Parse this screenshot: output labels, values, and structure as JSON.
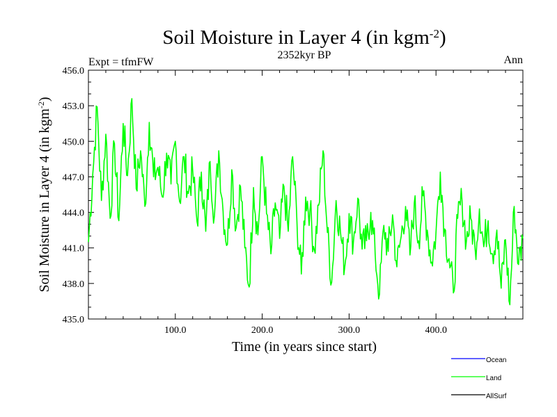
{
  "chart_data": {
    "type": "line",
    "title_main": "Soil Moisture in Layer 4 (in kgm",
    "title_sup": "-2",
    "title_end": ")",
    "subtitle_left": "Expt = tfmFW",
    "subtitle_center": "2352kyr BP",
    "subtitle_right": "Ann",
    "xlabel": "Time (in years since start)",
    "ylabel_main": "Soil Moisture in Layer 4 (in kgm",
    "ylabel_sup": "-2",
    "ylabel_end": ")",
    "xlim": [
      0,
      500
    ],
    "ylim": [
      435,
      456
    ],
    "x_ticks": [
      100,
      200,
      300,
      400
    ],
    "x_tick_labels": [
      "100.0",
      "200.0",
      "300.0",
      "400.0"
    ],
    "y_ticks": [
      435,
      438,
      441,
      444,
      447,
      450,
      453,
      456
    ],
    "y_tick_labels": [
      "435.0",
      "438.0",
      "441.0",
      "444.0",
      "447.0",
      "450.0",
      "453.0",
      "456.0"
    ],
    "legend": [
      {
        "name": "Ocean",
        "color": "#0000ff"
      },
      {
        "name": "Land",
        "color": "#00ff00"
      },
      {
        "name": "AllSurf",
        "color": "#000000"
      }
    ],
    "series": [
      {
        "name": "Land",
        "color": "#00ff00",
        "x": [
          0,
          5,
          10,
          15,
          20,
          25,
          30,
          35,
          40,
          45,
          50,
          55,
          60,
          65,
          70,
          75,
          80,
          85,
          90,
          95,
          100,
          105,
          110,
          115,
          120,
          125,
          130,
          135,
          140,
          145,
          150,
          155,
          160,
          165,
          170,
          175,
          180,
          185,
          190,
          195,
          200,
          205,
          210,
          215,
          220,
          225,
          230,
          235,
          240,
          245,
          250,
          255,
          260,
          265,
          270,
          275,
          280,
          285,
          290,
          295,
          300,
          305,
          310,
          315,
          320,
          325,
          330,
          335,
          340,
          345,
          350,
          355,
          360,
          365,
          370,
          375,
          380,
          385,
          390,
          395,
          400,
          405,
          410,
          415,
          420,
          425,
          430,
          435,
          440,
          445,
          450,
          455,
          460,
          465,
          470,
          475,
          480,
          485,
          490,
          495,
          500
        ],
        "values": [
          441.5,
          447.2,
          452.9,
          445.0,
          450.6,
          443.5,
          449.8,
          443.3,
          451.5,
          447.1,
          453.6,
          446.0,
          449.2,
          444.5,
          451.6,
          447.0,
          447.8,
          445.3,
          449.0,
          446.4,
          450.0,
          444.9,
          448.7,
          445.6,
          447.5,
          443.2,
          447.4,
          442.4,
          448.3,
          443.7,
          449.2,
          444.1,
          441.3,
          447.6,
          442.7,
          446.2,
          441.0,
          437.7,
          446.1,
          442.1,
          448.7,
          443.9,
          440.5,
          444.8,
          441.8,
          446.2,
          442.4,
          448.7,
          443.2,
          438.8,
          445.3,
          444.2,
          440.8,
          444.6,
          449.2,
          442.3,
          438.1,
          445.0,
          442.4,
          439.4,
          443.9,
          441.5,
          445.2,
          440.9,
          441.6,
          444.0,
          440.5,
          437.1,
          442.9,
          440.7,
          443.8,
          439.4,
          442.0,
          444.5,
          440.4,
          444.8,
          441.6,
          445.4,
          442.5,
          439.8,
          442.3,
          447.4,
          442.6,
          440.1,
          437.2,
          443.5,
          445.0,
          441.6,
          443.5,
          440.9,
          444.3,
          441.1,
          443.3,
          440.5,
          442.5,
          437.6,
          441.7,
          436.2,
          444.5,
          439.6,
          441.8
        ]
      }
    ]
  }
}
